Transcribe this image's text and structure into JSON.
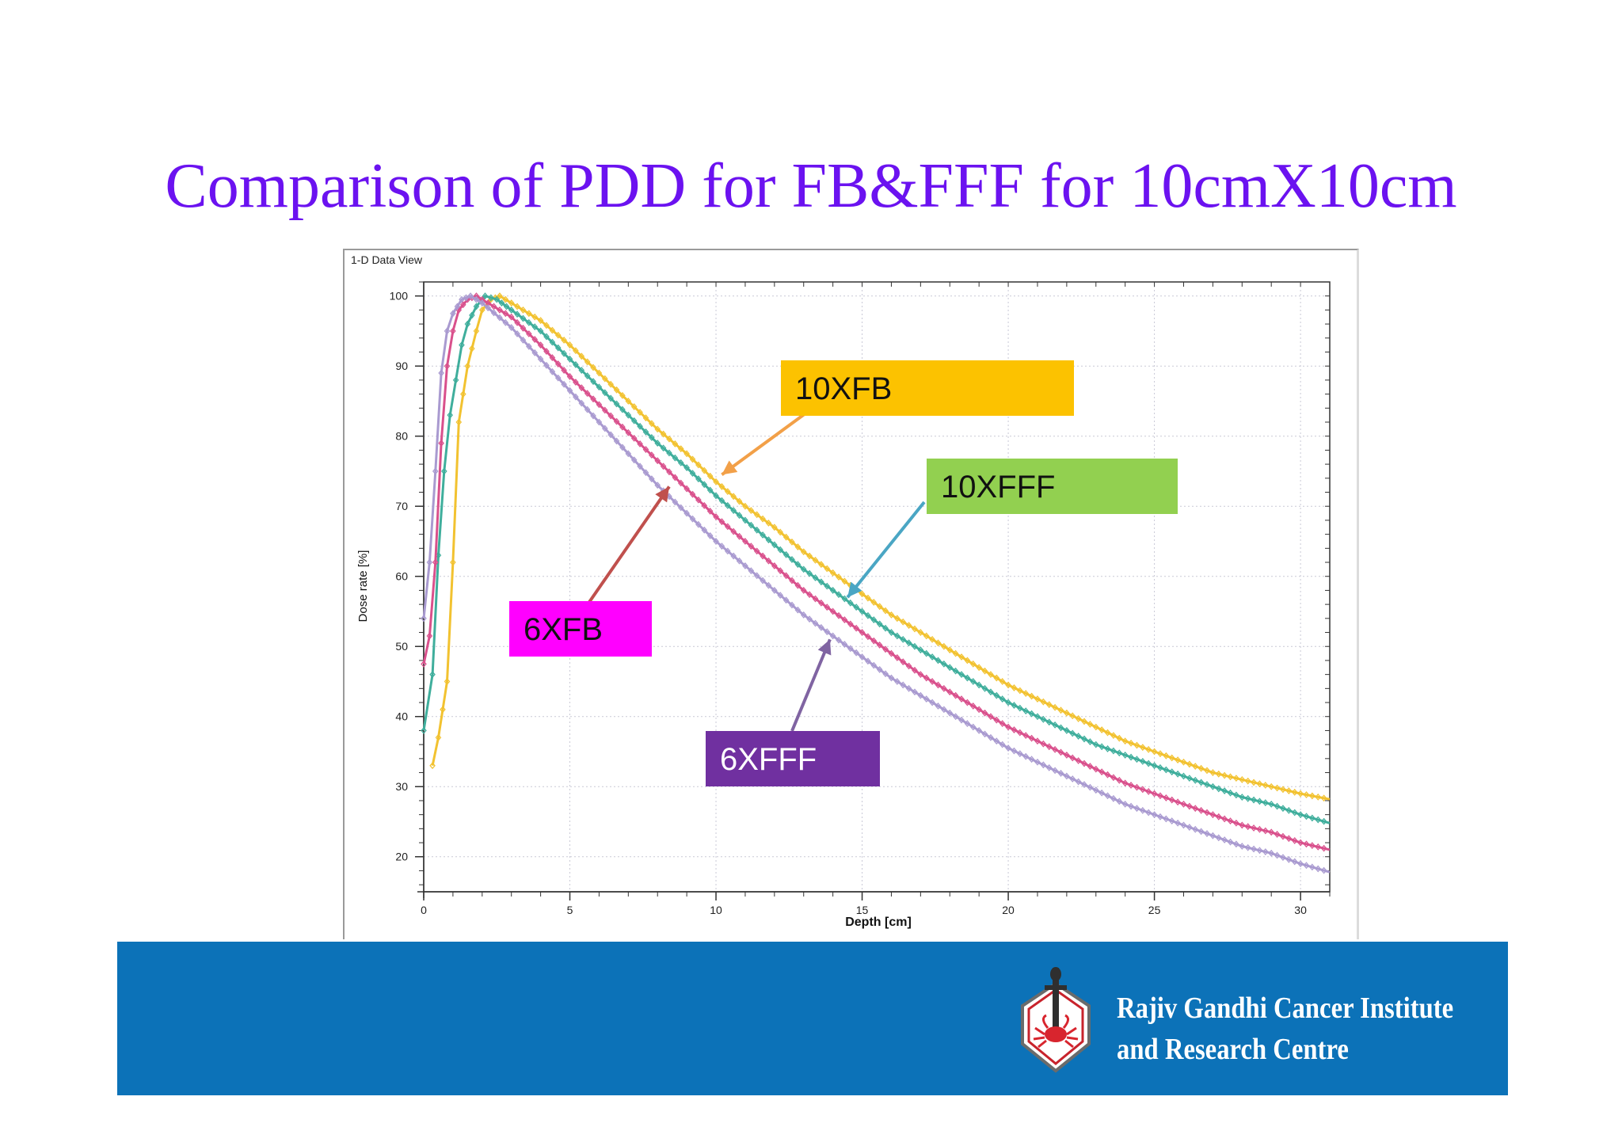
{
  "slide": {
    "title": "Comparison of PDD for FB&FFF for 10cmX10cm"
  },
  "window": {
    "title": "1-D Data View"
  },
  "chart_data": {
    "type": "line",
    "xlabel": "Depth [cm]",
    "ylabel": "Dose rate [%]",
    "xlim": [
      0,
      31
    ],
    "ylim": [
      15,
      102
    ],
    "xticks": [
      0,
      5,
      10,
      15,
      20,
      25,
      30
    ],
    "yticks": [
      20,
      30,
      40,
      50,
      60,
      70,
      80,
      90,
      100
    ],
    "grid": true,
    "series": [
      {
        "name": "10XFB",
        "color": "#f2c230",
        "points": [
          [
            0.3,
            33
          ],
          [
            0.5,
            37
          ],
          [
            0.8,
            45
          ],
          [
            1.0,
            62
          ],
          [
            1.2,
            82
          ],
          [
            1.5,
            90
          ],
          [
            1.8,
            95
          ],
          [
            2.0,
            98
          ],
          [
            2.3,
            99.5
          ],
          [
            2.6,
            100
          ],
          [
            3,
            99
          ],
          [
            4,
            96.5
          ],
          [
            5,
            93
          ],
          [
            6,
            89
          ],
          [
            7,
            85
          ],
          [
            8,
            81
          ],
          [
            9,
            77.5
          ],
          [
            10,
            73.5
          ],
          [
            11,
            70
          ],
          [
            12,
            67
          ],
          [
            13,
            63.5
          ],
          [
            14,
            60.5
          ],
          [
            15,
            57.5
          ],
          [
            16,
            54.5
          ],
          [
            17,
            52
          ],
          [
            18,
            49.5
          ],
          [
            19,
            47
          ],
          [
            20,
            44.5
          ],
          [
            21,
            42.5
          ],
          [
            22,
            40.5
          ],
          [
            23,
            38.5
          ],
          [
            24,
            36.5
          ],
          [
            25,
            35
          ],
          [
            26,
            33.5
          ],
          [
            27,
            32
          ],
          [
            28,
            31
          ],
          [
            29,
            30
          ],
          [
            30,
            29
          ],
          [
            31,
            28.2
          ]
        ]
      },
      {
        "name": "10XFFF",
        "color": "#3fae9c",
        "points": [
          [
            0.0,
            38
          ],
          [
            0.3,
            46
          ],
          [
            0.5,
            63
          ],
          [
            0.7,
            75
          ],
          [
            0.9,
            83
          ],
          [
            1.1,
            88
          ],
          [
            1.3,
            93
          ],
          [
            1.5,
            96
          ],
          [
            1.8,
            98.5
          ],
          [
            2.1,
            100
          ],
          [
            2.5,
            99.5
          ],
          [
            3,
            98
          ],
          [
            4,
            95
          ],
          [
            5,
            91
          ],
          [
            6,
            87
          ],
          [
            7,
            83
          ],
          [
            8,
            79
          ],
          [
            9,
            75.5
          ],
          [
            10,
            71.5
          ],
          [
            11,
            68
          ],
          [
            12,
            64.5
          ],
          [
            13,
            61
          ],
          [
            14,
            58
          ],
          [
            15,
            55
          ],
          [
            16,
            52
          ],
          [
            17,
            49.5
          ],
          [
            18,
            47
          ],
          [
            19,
            44.5
          ],
          [
            20,
            42
          ],
          [
            21,
            40
          ],
          [
            22,
            38
          ],
          [
            23,
            36
          ],
          [
            24,
            34.5
          ],
          [
            25,
            33
          ],
          [
            26,
            31.5
          ],
          [
            27,
            30
          ],
          [
            28,
            28.5
          ],
          [
            29,
            27.5
          ],
          [
            30,
            26
          ],
          [
            31,
            24.8
          ]
        ]
      },
      {
        "name": "6XFB",
        "color": "#d9508c",
        "points": [
          [
            0.0,
            47.5
          ],
          [
            0.2,
            51.5
          ],
          [
            0.4,
            62
          ],
          [
            0.6,
            79
          ],
          [
            0.8,
            90
          ],
          [
            1.0,
            95
          ],
          [
            1.2,
            98
          ],
          [
            1.5,
            99.5
          ],
          [
            1.8,
            100
          ],
          [
            2.2,
            99
          ],
          [
            3,
            97
          ],
          [
            4,
            93
          ],
          [
            5,
            88.5
          ],
          [
            6,
            84.5
          ],
          [
            7,
            80.5
          ],
          [
            8,
            76.5
          ],
          [
            9,
            72.5
          ],
          [
            10,
            68.5
          ],
          [
            11,
            65
          ],
          [
            12,
            61.5
          ],
          [
            13,
            58
          ],
          [
            14,
            55
          ],
          [
            15,
            52
          ],
          [
            16,
            49
          ],
          [
            17,
            46
          ],
          [
            18,
            43.5
          ],
          [
            19,
            41
          ],
          [
            20,
            38.5
          ],
          [
            21,
            36.5
          ],
          [
            22,
            34.5
          ],
          [
            23,
            32.5
          ],
          [
            24,
            30.5
          ],
          [
            25,
            29
          ],
          [
            26,
            27.5
          ],
          [
            27,
            26
          ],
          [
            28,
            24.5
          ],
          [
            29,
            23.5
          ],
          [
            30,
            22
          ],
          [
            31,
            21
          ]
        ]
      },
      {
        "name": "6XFFF",
        "color": "#a99ad0",
        "points": [
          [
            0.0,
            54
          ],
          [
            0.2,
            62
          ],
          [
            0.4,
            75
          ],
          [
            0.6,
            89
          ],
          [
            0.8,
            95
          ],
          [
            1.0,
            97.5
          ],
          [
            1.3,
            99.5
          ],
          [
            1.6,
            100
          ],
          [
            2.0,
            99
          ],
          [
            3,
            95.5
          ],
          [
            4,
            91
          ],
          [
            5,
            86.5
          ],
          [
            6,
            82
          ],
          [
            7,
            77.5
          ],
          [
            8,
            73
          ],
          [
            9,
            69
          ],
          [
            10,
            65
          ],
          [
            11,
            61.5
          ],
          [
            12,
            58
          ],
          [
            13,
            54.5
          ],
          [
            14,
            51.5
          ],
          [
            15,
            48.5
          ],
          [
            16,
            45.5
          ],
          [
            17,
            43
          ],
          [
            18,
            40.5
          ],
          [
            19,
            38
          ],
          [
            20,
            35.5
          ],
          [
            21,
            33.5
          ],
          [
            22,
            31.5
          ],
          [
            23,
            29.5
          ],
          [
            24,
            27.5
          ],
          [
            25,
            26
          ],
          [
            26,
            24.5
          ],
          [
            27,
            23
          ],
          [
            28,
            21.5
          ],
          [
            29,
            20.5
          ],
          [
            30,
            19
          ],
          [
            31,
            17.8
          ]
        ]
      }
    ],
    "annotations": [
      {
        "text": "10XFB",
        "color": "#fcc200",
        "text_color": "#111111",
        "arrow_color": "#f2a048",
        "target": [
          10.2,
          74.5
        ]
      },
      {
        "text": "10XFFF",
        "color": "#92d050",
        "text_color": "#111111",
        "arrow_color": "#4aa6c4",
        "target": [
          14.5,
          57
        ]
      },
      {
        "text": "6XFB",
        "color": "#ff00ff",
        "text_color": "#111111",
        "arrow_color": "#c0504d",
        "target": [
          8.4,
          72.8
        ]
      },
      {
        "text": "6XFFF",
        "color": "#7030a0",
        "text_color": "#ffffff",
        "arrow_color": "#8064a2",
        "target": [
          13.9,
          51
        ]
      }
    ]
  },
  "footer": {
    "institute_line1": "Rajiv Gandhi Cancer Institute",
    "institute_line2": "and Research Centre",
    "bar_color": "#0c72b8"
  }
}
